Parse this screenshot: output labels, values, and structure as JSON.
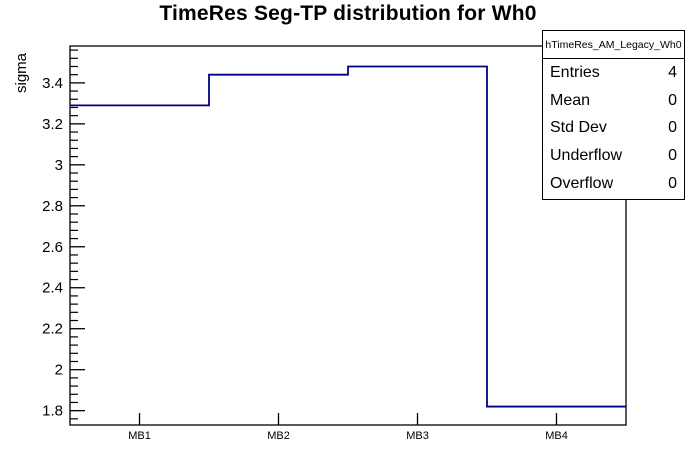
{
  "title_bar": {
    "window_title": ""
  },
  "colors": {
    "background": "#ffffff",
    "frame": "#000000",
    "text": "#000000",
    "hist_line": "#000085"
  },
  "chart_data": {
    "type": "bar",
    "style": "step-histogram-outline",
    "title": "TimeRes Seg-TP distribution for Wh0",
    "xlabel": "",
    "ylabel": "sigma",
    "categories": [
      "MB1",
      "MB2",
      "MB3",
      "MB4"
    ],
    "values": [
      3.29,
      3.44,
      3.48,
      1.82
    ],
    "ylim": [
      1.73,
      3.58
    ],
    "yticks": [
      1.8,
      2.0,
      2.2,
      2.4,
      2.6,
      2.8,
      3.0,
      3.2,
      3.4
    ],
    "ytick_labels": [
      "1.8",
      "2",
      "2.2",
      "2.4",
      "2.6",
      "2.8",
      "3",
      "3.2",
      "3.4"
    ],
    "minor_tick_step": 0.04,
    "grid": false,
    "legend_position": "none"
  },
  "stats_box": {
    "header": "hTimeRes_AM_Legacy_Wh0",
    "rows": [
      {
        "label": "Entries",
        "value": "4"
      },
      {
        "label": "Mean",
        "value": "0"
      },
      {
        "label": "Std Dev",
        "value": "0"
      },
      {
        "label": "Underflow",
        "value": "0"
      },
      {
        "label": "Overflow",
        "value": "0"
      }
    ]
  }
}
